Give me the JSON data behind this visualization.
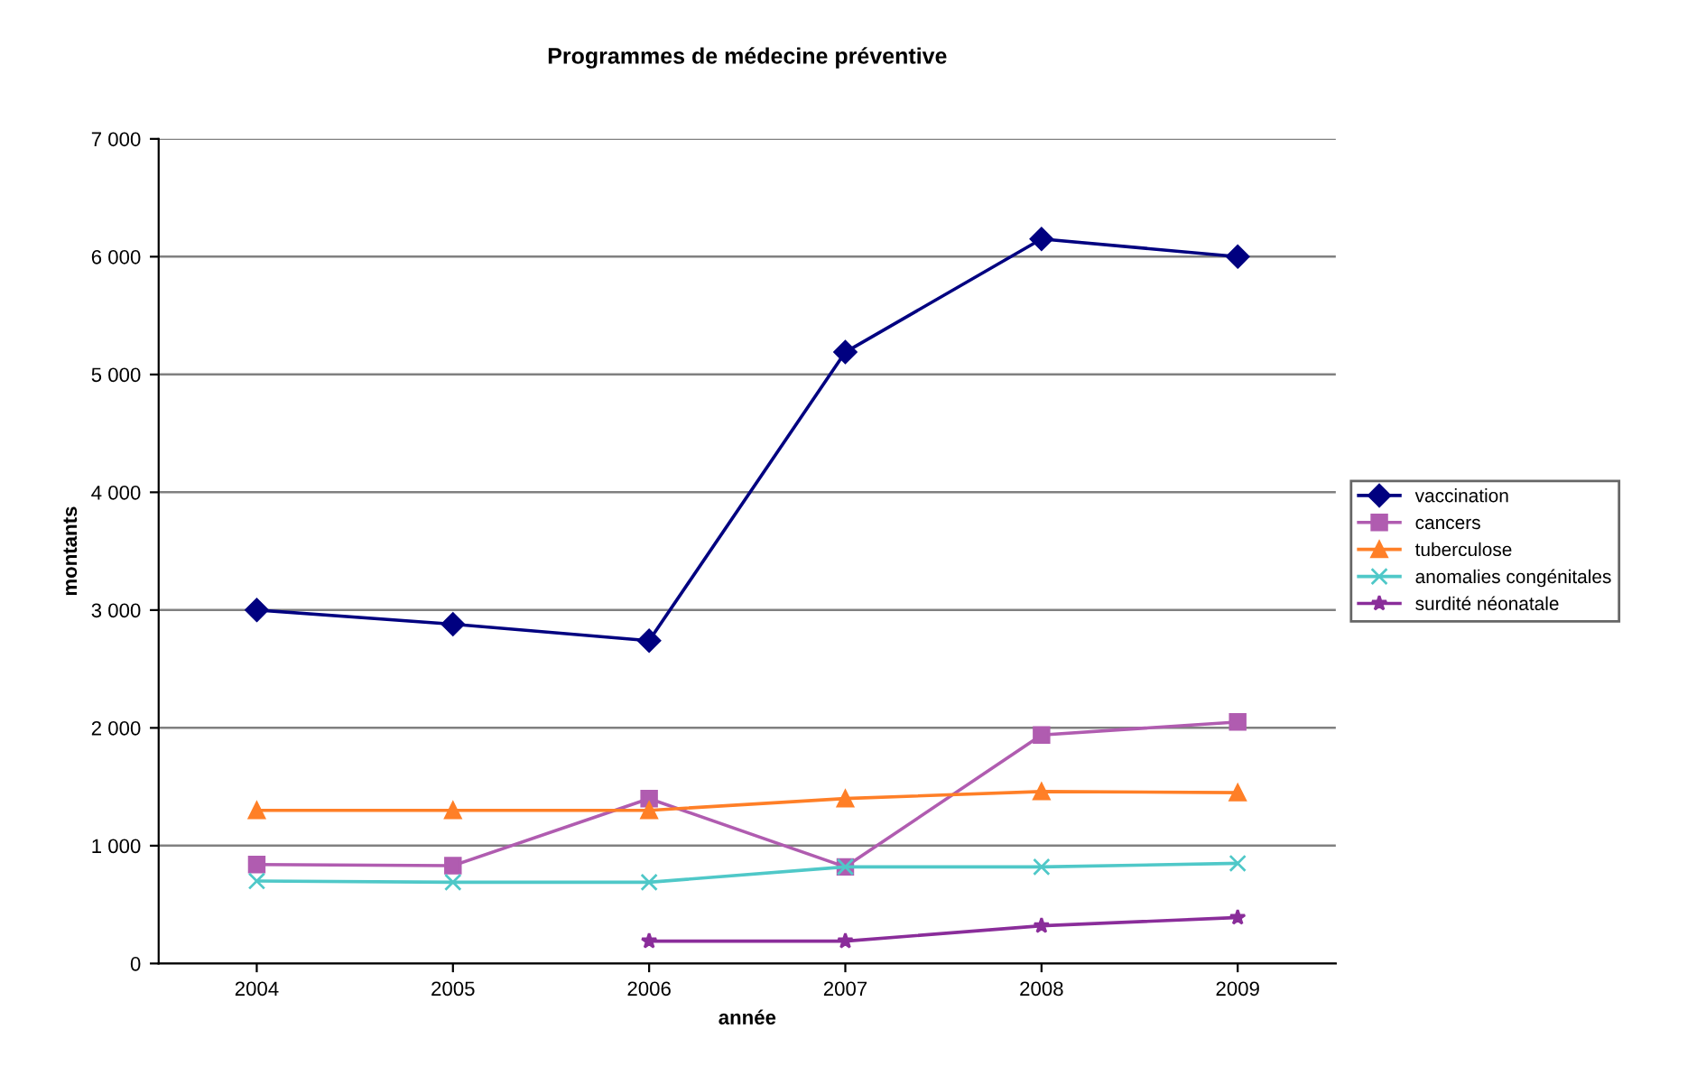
{
  "chart_data": {
    "type": "line",
    "title": "Programmes de médecine préventive",
    "xlabel": "année",
    "ylabel": "montants",
    "categories": [
      "2004",
      "2005",
      "2006",
      "2007",
      "2008",
      "2009"
    ],
    "series": [
      {
        "name": "vaccination",
        "color": "#000080",
        "marker": "diamond",
        "values": [
          3000,
          2880,
          2740,
          5190,
          6150,
          6000
        ]
      },
      {
        "name": "cancers",
        "color": "#b05cb0",
        "marker": "square",
        "values": [
          840,
          830,
          1400,
          820,
          1940,
          2050
        ]
      },
      {
        "name": "tuberculose",
        "color": "#ff7f27",
        "marker": "triangle",
        "values": [
          1300,
          1300,
          1300,
          1400,
          1460,
          1450
        ]
      },
      {
        "name": "anomalies congénitales",
        "color": "#4fc8c8",
        "marker": "cross",
        "values": [
          700,
          690,
          690,
          820,
          820,
          850
        ]
      },
      {
        "name": "surdité néonatale",
        "color": "#8a2d9a",
        "marker": "star",
        "values": [
          null,
          null,
          190,
          190,
          320,
          390
        ]
      }
    ],
    "ylim": [
      0,
      7000
    ],
    "yticks": [
      0,
      {
        "value": 1000,
        "label": "1 000"
      },
      {
        "value": 2000,
        "label": "2 000"
      },
      {
        "value": 3000,
        "label": "3 000"
      },
      {
        "value": 4000,
        "label": "4 000"
      },
      {
        "value": 5000,
        "label": "5 000"
      },
      {
        "value": 6000,
        "label": "6 000"
      },
      {
        "value": 7000,
        "label": "7 000"
      }
    ],
    "grid": "y",
    "legend": "right",
    "line_style": "solid"
  }
}
